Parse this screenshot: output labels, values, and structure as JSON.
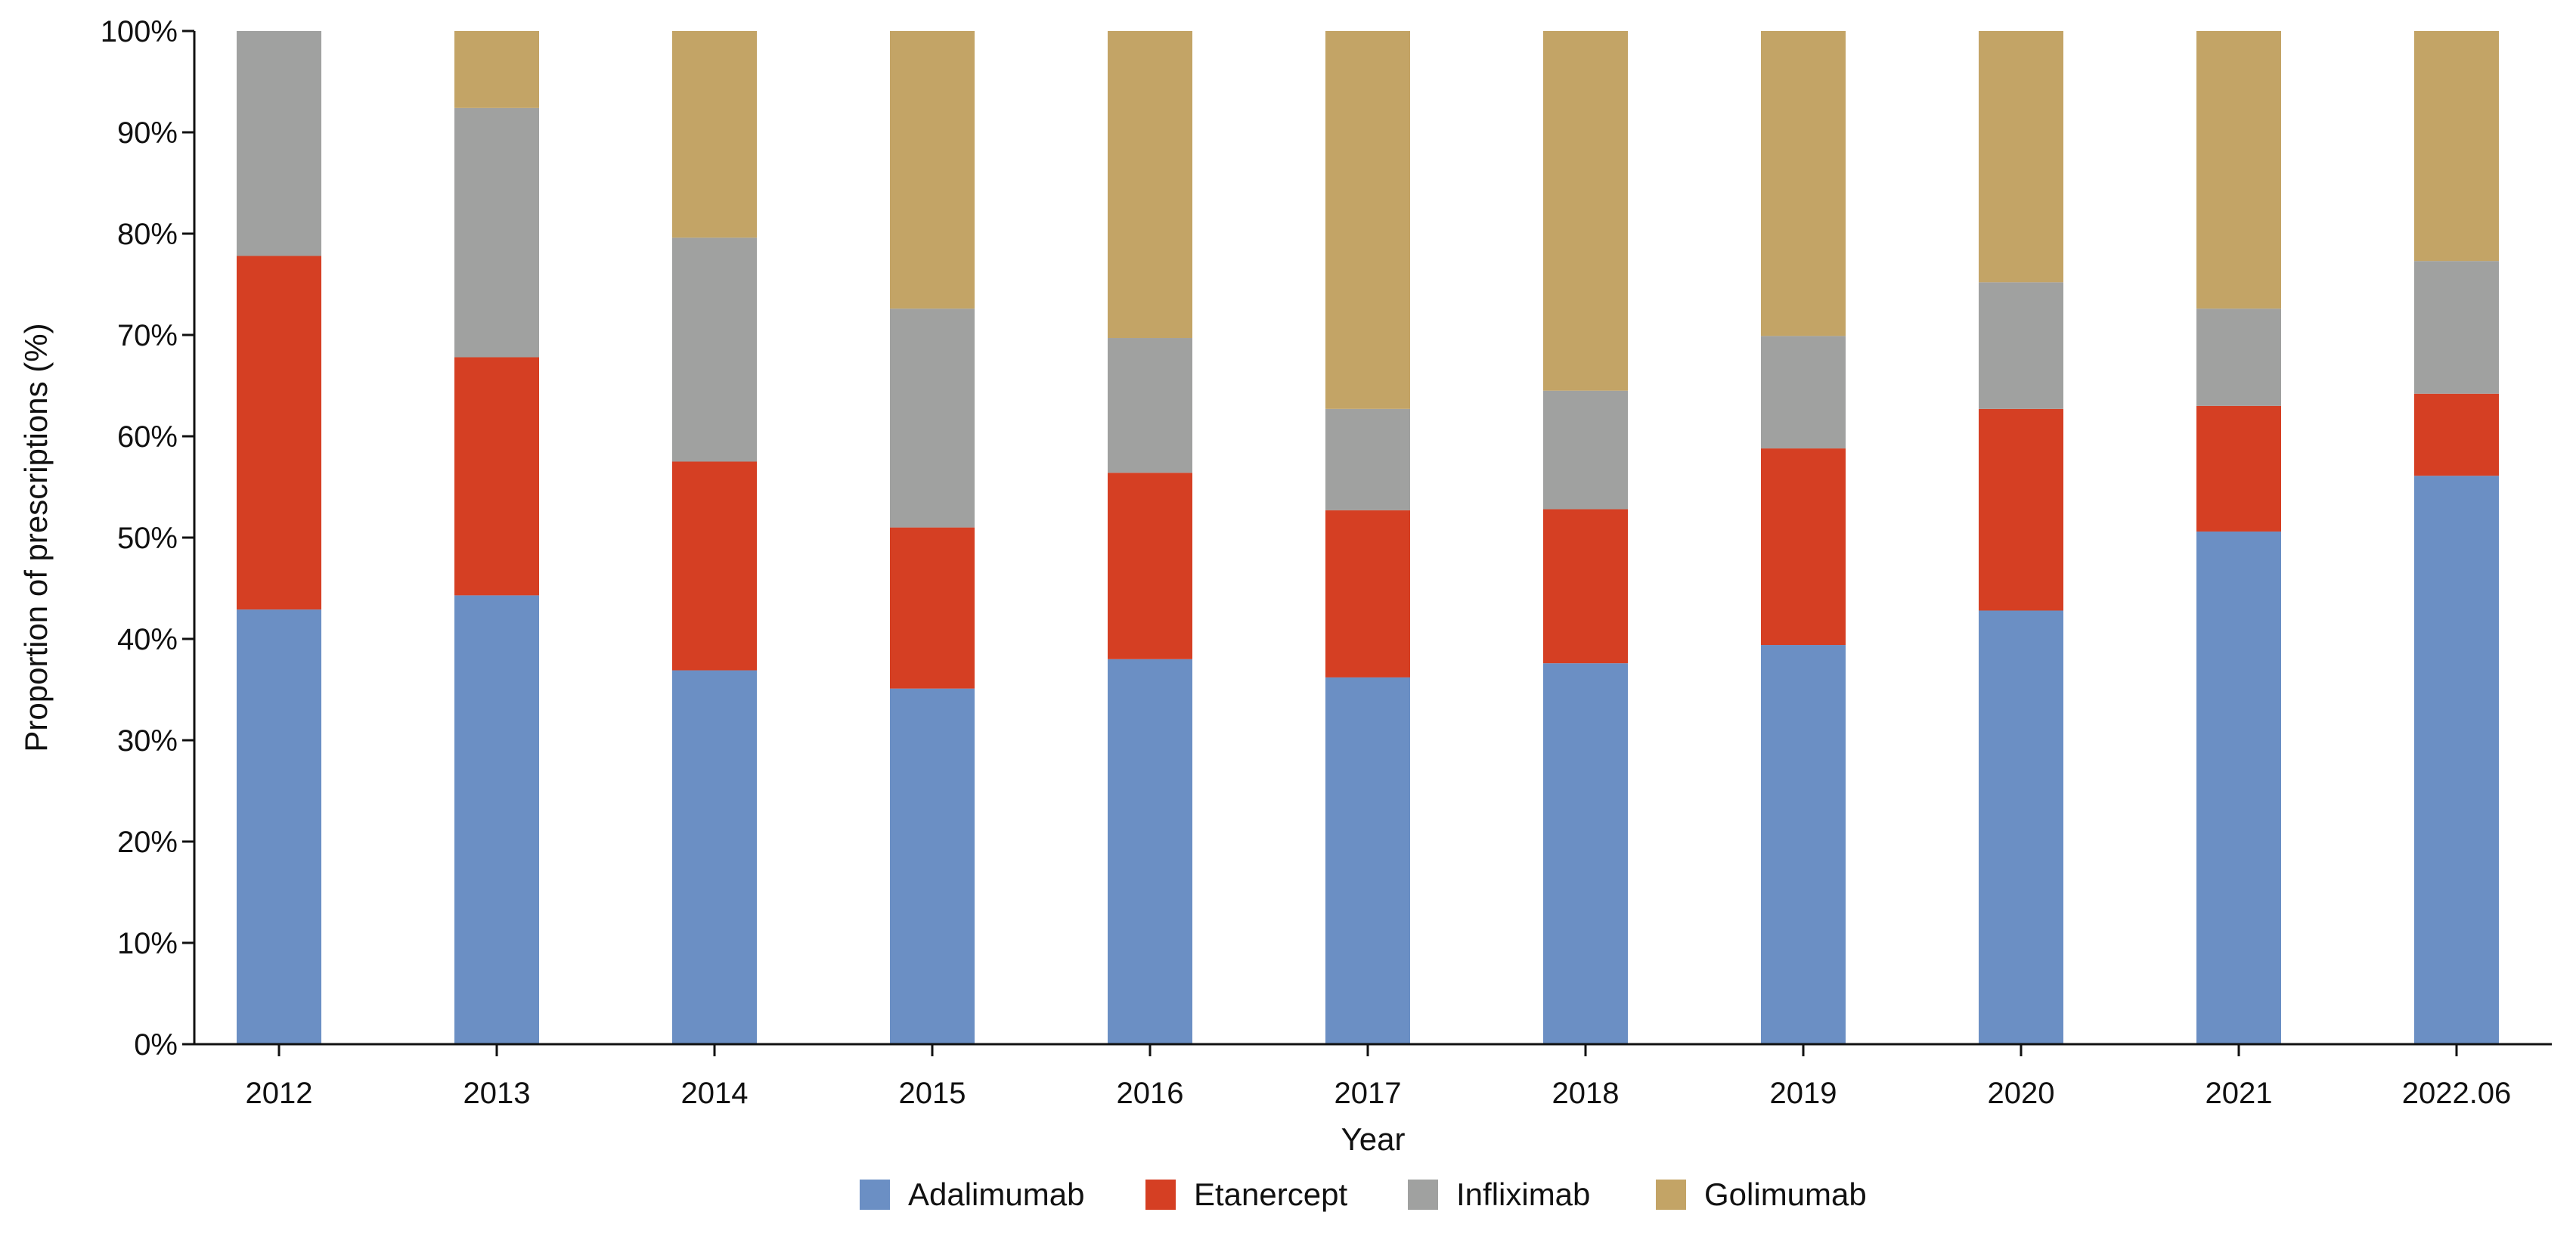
{
  "chart_data": {
    "type": "bar",
    "stacked": true,
    "categories": [
      "2012",
      "2013",
      "2014",
      "2015",
      "2016",
      "2017",
      "2018",
      "2019",
      "2020",
      "2021",
      "2022.06"
    ],
    "series": [
      {
        "name": "Adalimumab",
        "color": "#6b8fc4",
        "values": [
          42.9,
          44.3,
          36.9,
          35.1,
          38.0,
          36.2,
          37.6,
          39.4,
          42.8,
          50.6,
          56.1
        ]
      },
      {
        "name": "Etanercept",
        "color": "#d53f23",
        "values": [
          34.9,
          23.5,
          20.6,
          15.9,
          18.4,
          16.5,
          15.2,
          19.4,
          19.9,
          12.4,
          8.1
        ]
      },
      {
        "name": "Infliximab",
        "color": "#a0a1a0",
        "values": [
          22.2,
          24.6,
          22.1,
          21.6,
          13.3,
          10.0,
          11.7,
          11.1,
          12.5,
          9.6,
          13.1
        ]
      },
      {
        "name": "Golimumab",
        "color": "#c3a466",
        "values": [
          0.0,
          7.6,
          20.4,
          27.4,
          30.3,
          37.3,
          35.5,
          30.1,
          24.8,
          27.4,
          22.7
        ]
      }
    ],
    "xlabel": "Year",
    "ylabel": "Proportion of prescriptions (%)",
    "ylim": [
      0,
      100
    ],
    "yticks": [
      "0%",
      "10%",
      "20%",
      "30%",
      "40%",
      "50%",
      "60%",
      "70%",
      "80%",
      "90%",
      "100%"
    ],
    "grid": false,
    "legend_position": "bottom-center"
  }
}
